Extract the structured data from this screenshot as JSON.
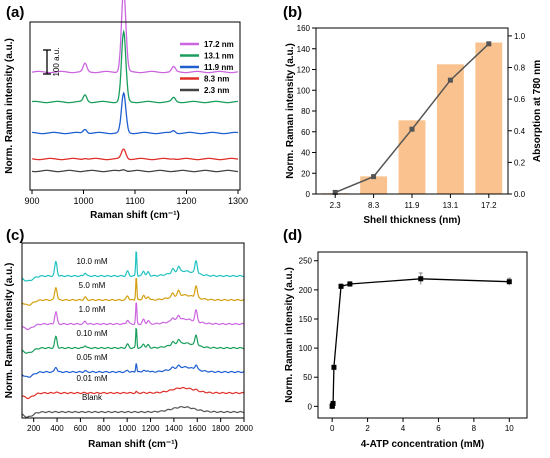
{
  "chart_data": [
    {
      "panel": "(a)",
      "type": "line",
      "xlabel": "Raman shift (cm⁻¹)",
      "ylabel": "Norm. Raman intensity (a.u.)",
      "xlim": [
        900,
        1300
      ],
      "xticks": [
        900,
        1000,
        1100,
        1200,
        1300
      ],
      "scale_bar_label": "100 a.u.",
      "legend_position": "top-right",
      "peaks": [
        {
          "position": 1003,
          "relative_height": 0.1
        },
        {
          "position": 1078,
          "relative_height": 1.0
        },
        {
          "position": 1175,
          "relative_height": 0.06
        }
      ],
      "series": [
        {
          "name": "17.2 nm",
          "color": "#cc66e0",
          "offset": 4,
          "peak_scale": 1.0
        },
        {
          "name": "13.1 nm",
          "color": "#1a9e5c",
          "offset": 3,
          "peak_scale": 0.85
        },
        {
          "name": "11.9 nm",
          "color": "#1f5fd0",
          "offset": 2,
          "peak_scale": 0.48
        },
        {
          "name": "8.3 nm",
          "color": "#e0302a",
          "offset": 1,
          "peak_scale": 0.12
        },
        {
          "name": "2.3 nm",
          "color": "#444444",
          "offset": 0,
          "peak_scale": 0.02
        }
      ]
    },
    {
      "panel": "(b)",
      "type": "bar",
      "xlabel": "Shell thickness (nm)",
      "ylabel": "Norm. Raman intensity (a.u.)",
      "ylabel_right": "Absorption at 780 nm",
      "categories": [
        "2.3",
        "8.3",
        "11.9",
        "13.1",
        "17.2"
      ],
      "ylim": [
        0,
        160
      ],
      "yticks": [
        0,
        20,
        40,
        60,
        80,
        100,
        120,
        140,
        160
      ],
      "ylim_right": [
        0,
        1.05
      ],
      "yticks_right": [
        "0.0",
        "0.2",
        "0.4",
        "0.6",
        "0.8",
        "1.0"
      ],
      "bar_color": "#f9c28e",
      "line_color": "#555555",
      "series": [
        {
          "values": [
            0.8,
            17,
            71,
            125,
            146
          ]
        },
        {
          "values": [
            0.01,
            0.11,
            0.41,
            0.72,
            0.95
          ]
        }
      ]
    },
    {
      "panel": "(c)",
      "type": "line",
      "xlabel": "Raman shift (cm⁻¹)",
      "ylabel": "Norm. Raman intensity (a.u.)",
      "xlim": [
        100,
        2000
      ],
      "xticks": [
        200,
        400,
        600,
        800,
        1000,
        1200,
        1400,
        1600,
        1800,
        2000
      ],
      "series": [
        {
          "name": "10.0 mM",
          "color": "#22c2c2"
        },
        {
          "name": "5.0 mM",
          "color": "#d4a013"
        },
        {
          "name": "1.0 mM",
          "color": "#cc66e0"
        },
        {
          "name": "0.10 mM",
          "color": "#1a9e5c"
        },
        {
          "name": "0.05 mM",
          "color": "#1f5fd0"
        },
        {
          "name": "0.01 mM",
          "color": "#e0302a"
        },
        {
          "name": "Blank",
          "color": "#555555"
        }
      ],
      "peak_scales": [
        1.0,
        0.9,
        0.85,
        0.8,
        0.35,
        0.05,
        0.0
      ],
      "peaks": [
        {
          "position": 390,
          "relative_height": 0.55
        },
        {
          "position": 640,
          "relative_height": 0.12
        },
        {
          "position": 1003,
          "relative_height": 0.18
        },
        {
          "position": 1078,
          "relative_height": 1.0
        },
        {
          "position": 1140,
          "relative_height": 0.2
        },
        {
          "position": 1180,
          "relative_height": 0.15
        },
        {
          "position": 1390,
          "relative_height": 0.15
        },
        {
          "position": 1440,
          "relative_height": 0.2
        },
        {
          "position": 1590,
          "relative_height": 0.5
        }
      ]
    },
    {
      "panel": "(d)",
      "type": "scatter",
      "xlabel": "4-ATP concentration (mM)",
      "ylabel": "Norm. Raman intensity (a.u.)",
      "xlim": [
        -0.8,
        11
      ],
      "xticks": [
        0,
        2,
        4,
        6,
        8,
        10
      ],
      "ylim": [
        -20,
        265
      ],
      "yticks": [
        0,
        50,
        100,
        150,
        200,
        250
      ],
      "x": [
        0,
        0.01,
        0.05,
        0.1,
        0.5,
        1.0,
        5.0,
        10.0
      ],
      "y": [
        0,
        1,
        5,
        67,
        206,
        210,
        219,
        214
      ],
      "error": [
        0,
        0,
        0,
        0,
        4,
        4,
        10,
        6
      ],
      "color": "#000000",
      "line_color": "#1fb5b5"
    }
  ]
}
